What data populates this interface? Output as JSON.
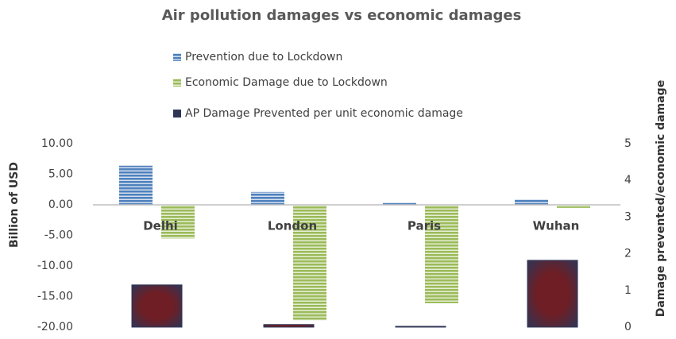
{
  "chart_data": {
    "type": "bar",
    "title": "Air pollution damages vs economic damages",
    "categories": [
      "Delhi",
      "London",
      "Paris",
      "Wuhan"
    ],
    "series": [
      {
        "name": "Prevention due to Lockdown",
        "color": "#4f81bd",
        "values": [
          6.4,
          2.1,
          0.4,
          0.9
        ]
      },
      {
        "name": "Economic Damage due to Lockdown",
        "color": "#9bbb59",
        "values": [
          -5.5,
          -18.9,
          -16.1,
          -0.5
        ]
      },
      {
        "name": "AP Damage Prevented per unit economic damage",
        "color": "#2f3556",
        "axis": "y2",
        "values": [
          1.15,
          0.07,
          0.02,
          1.82
        ]
      }
    ],
    "ylabel": "Billion of USD",
    "y2label": "Damage prevented/economic damage",
    "ylim": [
      -20,
      10
    ],
    "yticks": [
      {
        "value": 10,
        "label": "10.00"
      },
      {
        "value": 5,
        "label": "5.00"
      },
      {
        "value": 0,
        "label": "0.00"
      },
      {
        "value": -5,
        "label": "-5.00"
      },
      {
        "value": -10,
        "label": "-10.00"
      },
      {
        "value": -15,
        "label": "-15.00"
      },
      {
        "value": -20,
        "label": "-20.00"
      }
    ],
    "y2lim": [
      0,
      5
    ],
    "y2ticks": [
      0,
      1,
      2,
      3,
      4,
      5
    ]
  }
}
